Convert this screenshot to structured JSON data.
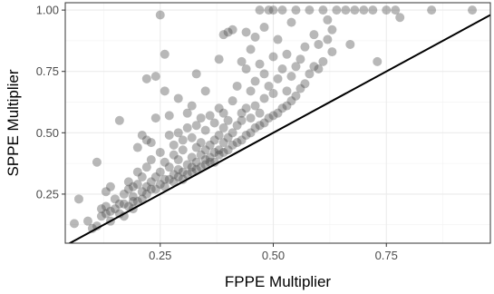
{
  "chart_data": {
    "type": "scatter",
    "title": "",
    "xlabel": "FPPE Multiplier",
    "ylabel": "SPPE Multiplier",
    "xlim": [
      0.04,
      0.98
    ],
    "ylim": [
      0.05,
      1.03
    ],
    "x_ticks": [
      0.25,
      0.5,
      0.75
    ],
    "x_tick_labels": [
      "0.25",
      "0.50",
      "0.75"
    ],
    "y_ticks": [
      0.25,
      0.5,
      0.75,
      1.0
    ],
    "y_tick_labels": [
      "0.25",
      "0.50",
      "0.75",
      "1.00"
    ],
    "grid": true,
    "point_color": "#4d4d4d",
    "line_color": "#000000",
    "reference_line": {
      "type": "identity",
      "intercept": 0,
      "slope": 1
    },
    "points": [
      [
        0.06,
        0.13
      ],
      [
        0.07,
        0.23
      ],
      [
        0.09,
        0.14
      ],
      [
        0.1,
        0.11
      ],
      [
        0.11,
        0.12
      ],
      [
        0.11,
        0.38
      ],
      [
        0.12,
        0.16
      ],
      [
        0.12,
        0.19
      ],
      [
        0.13,
        0.17
      ],
      [
        0.13,
        0.2
      ],
      [
        0.13,
        0.26
      ],
      [
        0.14,
        0.14
      ],
      [
        0.14,
        0.18
      ],
      [
        0.14,
        0.28
      ],
      [
        0.15,
        0.19
      ],
      [
        0.15,
        0.23
      ],
      [
        0.16,
        0.17
      ],
      [
        0.16,
        0.21
      ],
      [
        0.16,
        0.55
      ],
      [
        0.17,
        0.21
      ],
      [
        0.17,
        0.25
      ],
      [
        0.17,
        0.16
      ],
      [
        0.18,
        0.2
      ],
      [
        0.18,
        0.27
      ],
      [
        0.18,
        0.3
      ],
      [
        0.19,
        0.19
      ],
      [
        0.19,
        0.22
      ],
      [
        0.19,
        0.24
      ],
      [
        0.19,
        0.28
      ],
      [
        0.2,
        0.22
      ],
      [
        0.2,
        0.29
      ],
      [
        0.2,
        0.34
      ],
      [
        0.2,
        0.44
      ],
      [
        0.21,
        0.23
      ],
      [
        0.21,
        0.26
      ],
      [
        0.21,
        0.32
      ],
      [
        0.21,
        0.49
      ],
      [
        0.22,
        0.25
      ],
      [
        0.22,
        0.28
      ],
      [
        0.22,
        0.47
      ],
      [
        0.22,
        0.36
      ],
      [
        0.22,
        0.72
      ],
      [
        0.23,
        0.27
      ],
      [
        0.23,
        0.3
      ],
      [
        0.23,
        0.39
      ],
      [
        0.23,
        0.46
      ],
      [
        0.24,
        0.27
      ],
      [
        0.24,
        0.32
      ],
      [
        0.24,
        0.56
      ],
      [
        0.24,
        0.73
      ],
      [
        0.25,
        0.29
      ],
      [
        0.25,
        0.34
      ],
      [
        0.25,
        0.42
      ],
      [
        0.25,
        0.98
      ],
      [
        0.26,
        0.28
      ],
      [
        0.26,
        0.31
      ],
      [
        0.26,
        0.38
      ],
      [
        0.26,
        0.67
      ],
      [
        0.26,
        0.82
      ],
      [
        0.27,
        0.31
      ],
      [
        0.27,
        0.36
      ],
      [
        0.27,
        0.49
      ],
      [
        0.27,
        0.57
      ],
      [
        0.28,
        0.3
      ],
      [
        0.28,
        0.33
      ],
      [
        0.28,
        0.41
      ],
      [
        0.28,
        0.45
      ],
      [
        0.29,
        0.32
      ],
      [
        0.29,
        0.35
      ],
      [
        0.29,
        0.39
      ],
      [
        0.29,
        0.5
      ],
      [
        0.29,
        0.64
      ],
      [
        0.3,
        0.31
      ],
      [
        0.3,
        0.34
      ],
      [
        0.3,
        0.43
      ],
      [
        0.3,
        0.47
      ],
      [
        0.31,
        0.33
      ],
      [
        0.31,
        0.37
      ],
      [
        0.31,
        0.52
      ],
      [
        0.31,
        0.58
      ],
      [
        0.32,
        0.34
      ],
      [
        0.32,
        0.36
      ],
      [
        0.32,
        0.4
      ],
      [
        0.32,
        0.48
      ],
      [
        0.32,
        0.61
      ],
      [
        0.33,
        0.35
      ],
      [
        0.33,
        0.38
      ],
      [
        0.33,
        0.44
      ],
      [
        0.33,
        0.53
      ],
      [
        0.33,
        0.74
      ],
      [
        0.34,
        0.36
      ],
      [
        0.34,
        0.41
      ],
      [
        0.34,
        0.46
      ],
      [
        0.34,
        0.56
      ],
      [
        0.35,
        0.37
      ],
      [
        0.35,
        0.39
      ],
      [
        0.35,
        0.43
      ],
      [
        0.35,
        0.51
      ],
      [
        0.35,
        0.67
      ],
      [
        0.36,
        0.38
      ],
      [
        0.36,
        0.4
      ],
      [
        0.36,
        0.45
      ],
      [
        0.36,
        0.57
      ],
      [
        0.37,
        0.38
      ],
      [
        0.37,
        0.42
      ],
      [
        0.37,
        0.47
      ],
      [
        0.37,
        0.54
      ],
      [
        0.38,
        0.41
      ],
      [
        0.38,
        0.43
      ],
      [
        0.38,
        0.49
      ],
      [
        0.38,
        0.6
      ],
      [
        0.38,
        0.8
      ],
      [
        0.39,
        0.42
      ],
      [
        0.39,
        0.46
      ],
      [
        0.39,
        0.52
      ],
      [
        0.39,
        0.58
      ],
      [
        0.39,
        0.9
      ],
      [
        0.4,
        0.43
      ],
      [
        0.4,
        0.48
      ],
      [
        0.4,
        0.55
      ],
      [
        0.4,
        0.91
      ],
      [
        0.41,
        0.45
      ],
      [
        0.41,
        0.5
      ],
      [
        0.41,
        0.63
      ],
      [
        0.41,
        0.92
      ],
      [
        0.42,
        0.46
      ],
      [
        0.42,
        0.53
      ],
      [
        0.42,
        0.69
      ],
      [
        0.43,
        0.47
      ],
      [
        0.43,
        0.55
      ],
      [
        0.43,
        0.58
      ],
      [
        0.43,
        0.79
      ],
      [
        0.44,
        0.49
      ],
      [
        0.44,
        0.6
      ],
      [
        0.44,
        0.76
      ],
      [
        0.44,
        0.91
      ],
      [
        0.45,
        0.5
      ],
      [
        0.45,
        0.56
      ],
      [
        0.45,
        0.67
      ],
      [
        0.45,
        0.84
      ],
      [
        0.46,
        0.52
      ],
      [
        0.46,
        0.61
      ],
      [
        0.46,
        0.71
      ],
      [
        0.46,
        0.89
      ],
      [
        0.47,
        0.53
      ],
      [
        0.47,
        0.58
      ],
      [
        0.47,
        0.78
      ],
      [
        0.47,
        1.0
      ],
      [
        0.48,
        0.54
      ],
      [
        0.48,
        0.64
      ],
      [
        0.48,
        0.74
      ],
      [
        0.48,
        0.93
      ],
      [
        0.49,
        0.56
      ],
      [
        0.49,
        0.69
      ],
      [
        0.49,
        1.0
      ],
      [
        0.5,
        0.57
      ],
      [
        0.5,
        0.66
      ],
      [
        0.5,
        0.81
      ],
      [
        0.5,
        1.0
      ],
      [
        0.51,
        0.58
      ],
      [
        0.51,
        0.72
      ],
      [
        0.51,
        0.88
      ],
      [
        0.52,
        0.6
      ],
      [
        0.52,
        0.76
      ],
      [
        0.52,
        1.0
      ],
      [
        0.53,
        0.61
      ],
      [
        0.53,
        0.67
      ],
      [
        0.53,
        0.82
      ],
      [
        0.54,
        0.63
      ],
      [
        0.54,
        0.73
      ],
      [
        0.54,
        0.95
      ],
      [
        0.55,
        0.65
      ],
      [
        0.55,
        0.77
      ],
      [
        0.55,
        1.0
      ],
      [
        0.56,
        0.68
      ],
      [
        0.56,
        0.8
      ],
      [
        0.57,
        0.7
      ],
      [
        0.57,
        0.85
      ],
      [
        0.58,
        0.74
      ],
      [
        0.58,
        1.0
      ],
      [
        0.59,
        0.77
      ],
      [
        0.59,
        0.9
      ],
      [
        0.6,
        0.76
      ],
      [
        0.6,
        0.86
      ],
      [
        0.61,
        0.79
      ],
      [
        0.61,
        1.0
      ],
      [
        0.62,
        0.88
      ],
      [
        0.62,
        0.96
      ],
      [
        0.63,
        0.83
      ],
      [
        0.63,
        0.92
      ],
      [
        0.64,
        1.0
      ],
      [
        0.66,
        1.0
      ],
      [
        0.67,
        0.86
      ],
      [
        0.68,
        1.0
      ],
      [
        0.7,
        1.0
      ],
      [
        0.72,
        1.0
      ],
      [
        0.73,
        0.79
      ],
      [
        0.75,
        1.0
      ],
      [
        0.77,
        1.0
      ],
      [
        0.78,
        0.97
      ],
      [
        0.85,
        1.0
      ],
      [
        0.94,
        1.0
      ]
    ]
  }
}
